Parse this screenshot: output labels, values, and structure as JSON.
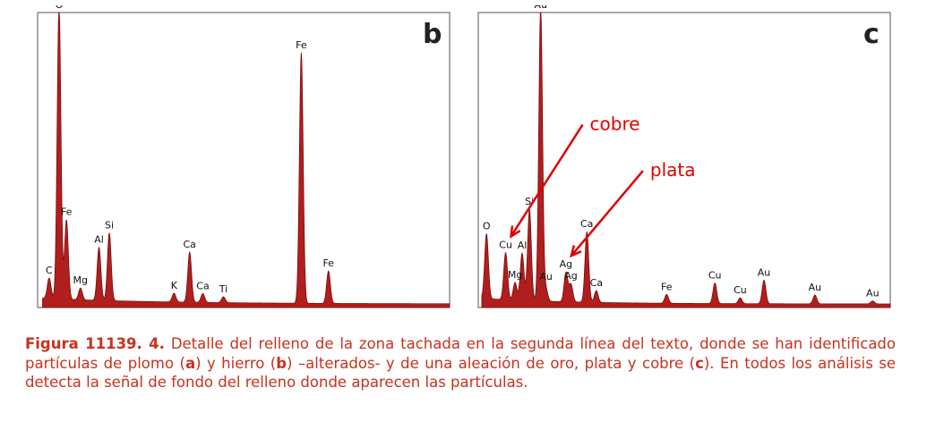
{
  "chart_data": [
    {
      "type": "area",
      "panel": "b",
      "xlim": [
        0,
        10
      ],
      "ylim": [
        0,
        100
      ],
      "grid": false,
      "color": "#b11e1e",
      "peaks": [
        {
          "x": 0.28,
          "y": 7,
          "label": "C"
        },
        {
          "x": 0.52,
          "y": 100,
          "label": "O"
        },
        {
          "x": 0.7,
          "y": 27,
          "label": "Fe"
        },
        {
          "x": 1.04,
          "y": 4,
          "label": "Mg"
        },
        {
          "x": 1.49,
          "y": 18,
          "label": "Al"
        },
        {
          "x": 1.74,
          "y": 23,
          "label": "Si"
        },
        {
          "x": 3.31,
          "y": 3,
          "label": "K"
        },
        {
          "x": 3.69,
          "y": 17,
          "label": "Ca"
        },
        {
          "x": 4.01,
          "y": 3,
          "label": "Ca"
        },
        {
          "x": 4.51,
          "y": 2,
          "label": "Ti"
        },
        {
          "x": 6.4,
          "y": 85,
          "label": "Fe"
        },
        {
          "x": 7.06,
          "y": 11,
          "label": "Fe"
        }
      ],
      "panel_letter": "b"
    },
    {
      "type": "area",
      "panel": "c",
      "xlim": [
        0,
        14
      ],
      "ylim": [
        0,
        100
      ],
      "grid": false,
      "color": "#b11e1e",
      "peaks": [
        {
          "x": 0.28,
          "y": 22,
          "label": "O"
        },
        {
          "x": 0.93,
          "y": 16,
          "label": "Cu"
        },
        {
          "x": 1.25,
          "y": 6,
          "label": "Mg"
        },
        {
          "x": 1.49,
          "y": 16,
          "label": "Al"
        },
        {
          "x": 1.74,
          "y": 31,
          "label": "Si"
        },
        {
          "x": 2.12,
          "y": 100,
          "label": "Au"
        },
        {
          "x": 2.3,
          "y": 4,
          "label": "Au"
        },
        {
          "x": 2.98,
          "y": 10,
          "label": "Ag"
        },
        {
          "x": 3.15,
          "y": 6,
          "label": "Ag"
        },
        {
          "x": 3.69,
          "y": 24,
          "label": "Ca"
        },
        {
          "x": 4.01,
          "y": 4,
          "label": "Ca"
        },
        {
          "x": 6.4,
          "y": 3,
          "label": "Fe"
        },
        {
          "x": 8.04,
          "y": 7,
          "label": "Cu"
        },
        {
          "x": 8.9,
          "y": 2,
          "label": "Cu"
        },
        {
          "x": 9.71,
          "y": 8,
          "label": "Au"
        },
        {
          "x": 11.44,
          "y": 3,
          "label": "Au"
        },
        {
          "x": 13.4,
          "y": 1,
          "label": "Au"
        }
      ],
      "panel_letter": "c",
      "annotations": [
        {
          "text": "cobre",
          "x": 0.93
        },
        {
          "text": "plata",
          "x": 2.98
        }
      ]
    }
  ],
  "caption": {
    "lead": "Figura 11139. 4.",
    "p1": " Detalle del relleno de la zona tachada en la segunda línea del texto, donde se han identificado partículas de plomo (",
    "a": "a",
    "p2": ") y hierro (",
    "b": "b",
    "p3": ") –alterados- y de una aleación de oro, plata y cobre (",
    "c": "c",
    "p4": "). En todos los análisis se detecta la señal de fondo del relleno donde aparecen las partículas."
  }
}
